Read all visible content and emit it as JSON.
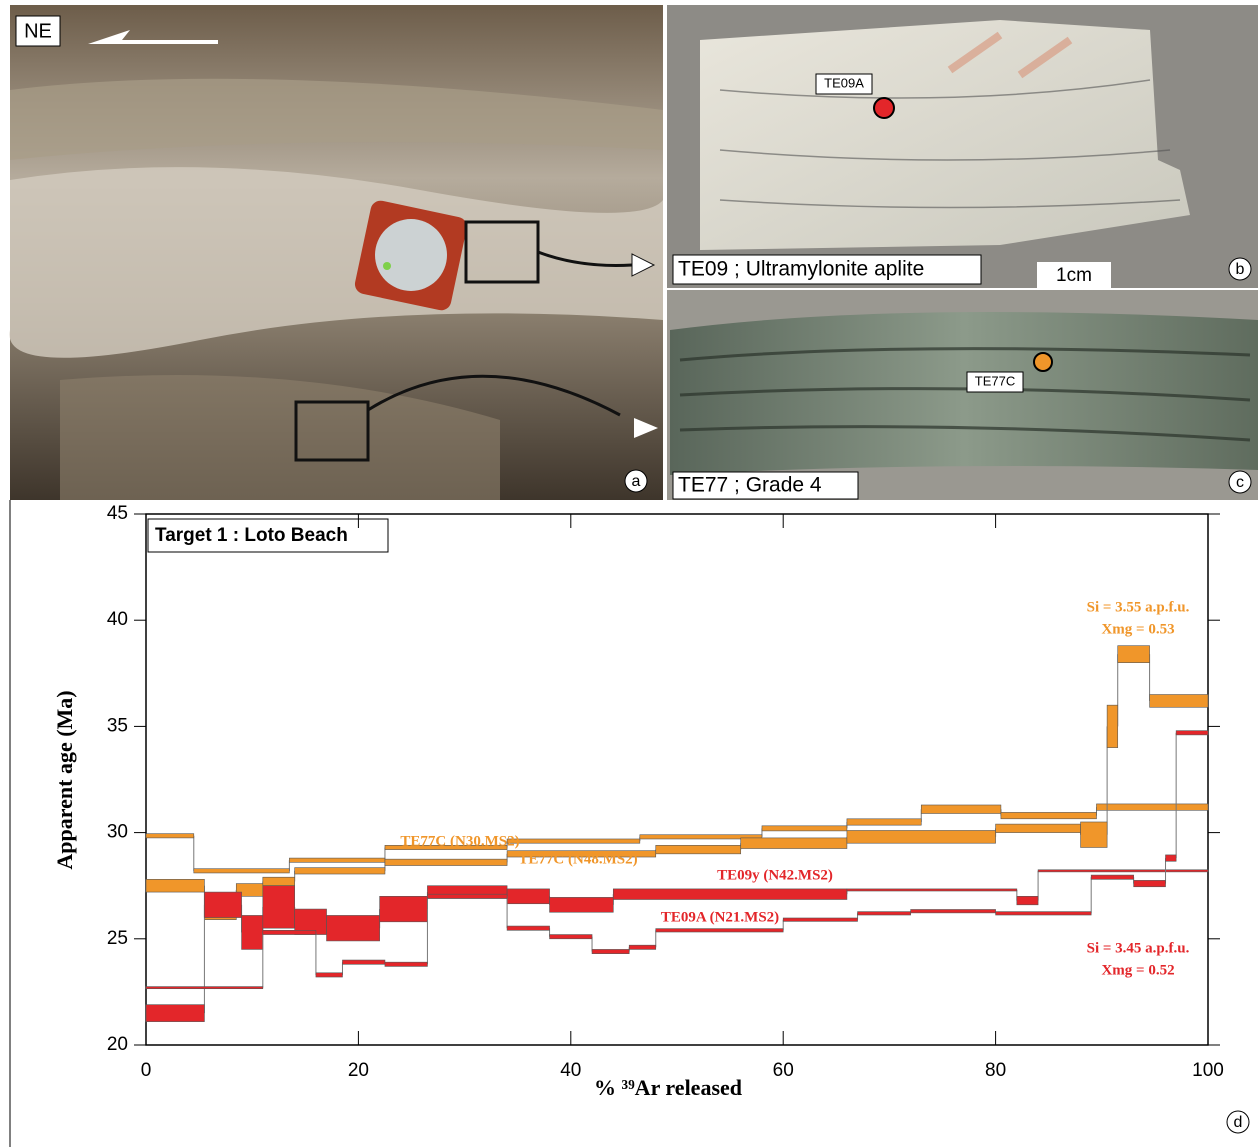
{
  "panels": {
    "a": {
      "label": "a",
      "orientation": "NE"
    },
    "b": {
      "label": "b",
      "sample": "TE09A",
      "caption": "TE09 ; Ultramylonite aplite",
      "scale": "1cm"
    },
    "c": {
      "label": "c",
      "sample": "TE77C",
      "caption": "TE77 ; Grade 4"
    },
    "d": {
      "label": "d"
    }
  },
  "chart_data": {
    "type": "step-spectrum",
    "title": "Target 1 : Loto Beach",
    "x_label": "% ³⁹Ar released",
    "y_label": "Apparent age (Ma)",
    "xlim": [
      0,
      100
    ],
    "ylim": [
      20,
      45
    ],
    "xticks": [
      0,
      20,
      40,
      60,
      80,
      100
    ],
    "yticks": [
      20,
      25,
      30,
      35,
      40,
      45
    ],
    "series": [
      {
        "name": "TE77C (N30.MS2)",
        "color": "#f0962a",
        "bins": [
          0,
          4.5,
          13.5,
          22.5,
          34,
          46.5,
          58,
          66,
          73,
          80.5,
          89.5,
          100
        ],
        "values": [
          29.85,
          28.2,
          28.7,
          29.3,
          29.6,
          29.8,
          30.2,
          30.5,
          31.1,
          30.8,
          31.2
        ],
        "errors": [
          0.1,
          0.1,
          0.1,
          0.1,
          0.1,
          0.1,
          0.12,
          0.15,
          0.2,
          0.15,
          0.15
        ]
      },
      {
        "name": "TE77C (N48.MS2)",
        "color": "#f0962a",
        "bins": [
          0,
          5.5,
          8.5,
          11,
          14,
          22.5,
          34,
          48,
          56,
          66,
          80,
          88,
          90.5,
          91.5,
          94.5,
          100
        ],
        "values": [
          27.5,
          26.0,
          27.3,
          27.7,
          28.2,
          28.6,
          29.0,
          29.2,
          29.5,
          29.8,
          30.2,
          29.9,
          35.0,
          38.4,
          36.2
        ],
        "errors": [
          0.3,
          0.1,
          0.3,
          0.2,
          0.15,
          0.15,
          0.15,
          0.2,
          0.25,
          0.3,
          0.2,
          0.6,
          1.0,
          0.4,
          0.3
        ]
      },
      {
        "name": "TE09y (N42.MS2)",
        "color": "#e3262a",
        "bins": [
          0,
          5.5,
          9,
          11,
          14,
          17,
          22,
          26.5,
          34,
          38,
          44,
          66,
          82,
          84,
          100
        ],
        "values": [
          21.5,
          26.6,
          25.3,
          26.5,
          25.8,
          25.5,
          26.4,
          27.2,
          27.0,
          26.6,
          27.1,
          27.3,
          26.8,
          28.2
        ],
        "errors": [
          0.4,
          0.6,
          0.8,
          1.0,
          0.6,
          0.6,
          0.6,
          0.3,
          0.35,
          0.35,
          0.25,
          0.05,
          0.2,
          0.05
        ]
      },
      {
        "name": "TE09A (N21.MS2)",
        "color": "#e3262a",
        "bins": [
          0,
          11,
          16,
          18.5,
          22.5,
          26.5,
          34,
          38,
          42,
          45.5,
          48,
          60,
          67,
          72,
          80,
          89,
          93,
          96,
          97,
          100
        ],
        "values": [
          22.7,
          25.3,
          23.3,
          23.9,
          23.8,
          27.0,
          25.5,
          25.1,
          24.4,
          24.6,
          25.4,
          25.9,
          26.2,
          26.3,
          26.2,
          27.9,
          27.6,
          28.8,
          34.7
        ],
        "errors": [
          0.05,
          0.1,
          0.1,
          0.1,
          0.1,
          0.1,
          0.1,
          0.1,
          0.1,
          0.1,
          0.08,
          0.08,
          0.08,
          0.08,
          0.08,
          0.1,
          0.15,
          0.15,
          0.1
        ]
      }
    ],
    "annotations": [
      {
        "lines": [
          "Si = 3.55 a.p.f.u.",
          "Xmg = 0.53"
        ],
        "color": "#f0962a"
      },
      {
        "lines": [
          "Si = 3.45 a.p.f.u.",
          "Xmg = 0.52"
        ],
        "color": "#e3262a"
      }
    ]
  }
}
